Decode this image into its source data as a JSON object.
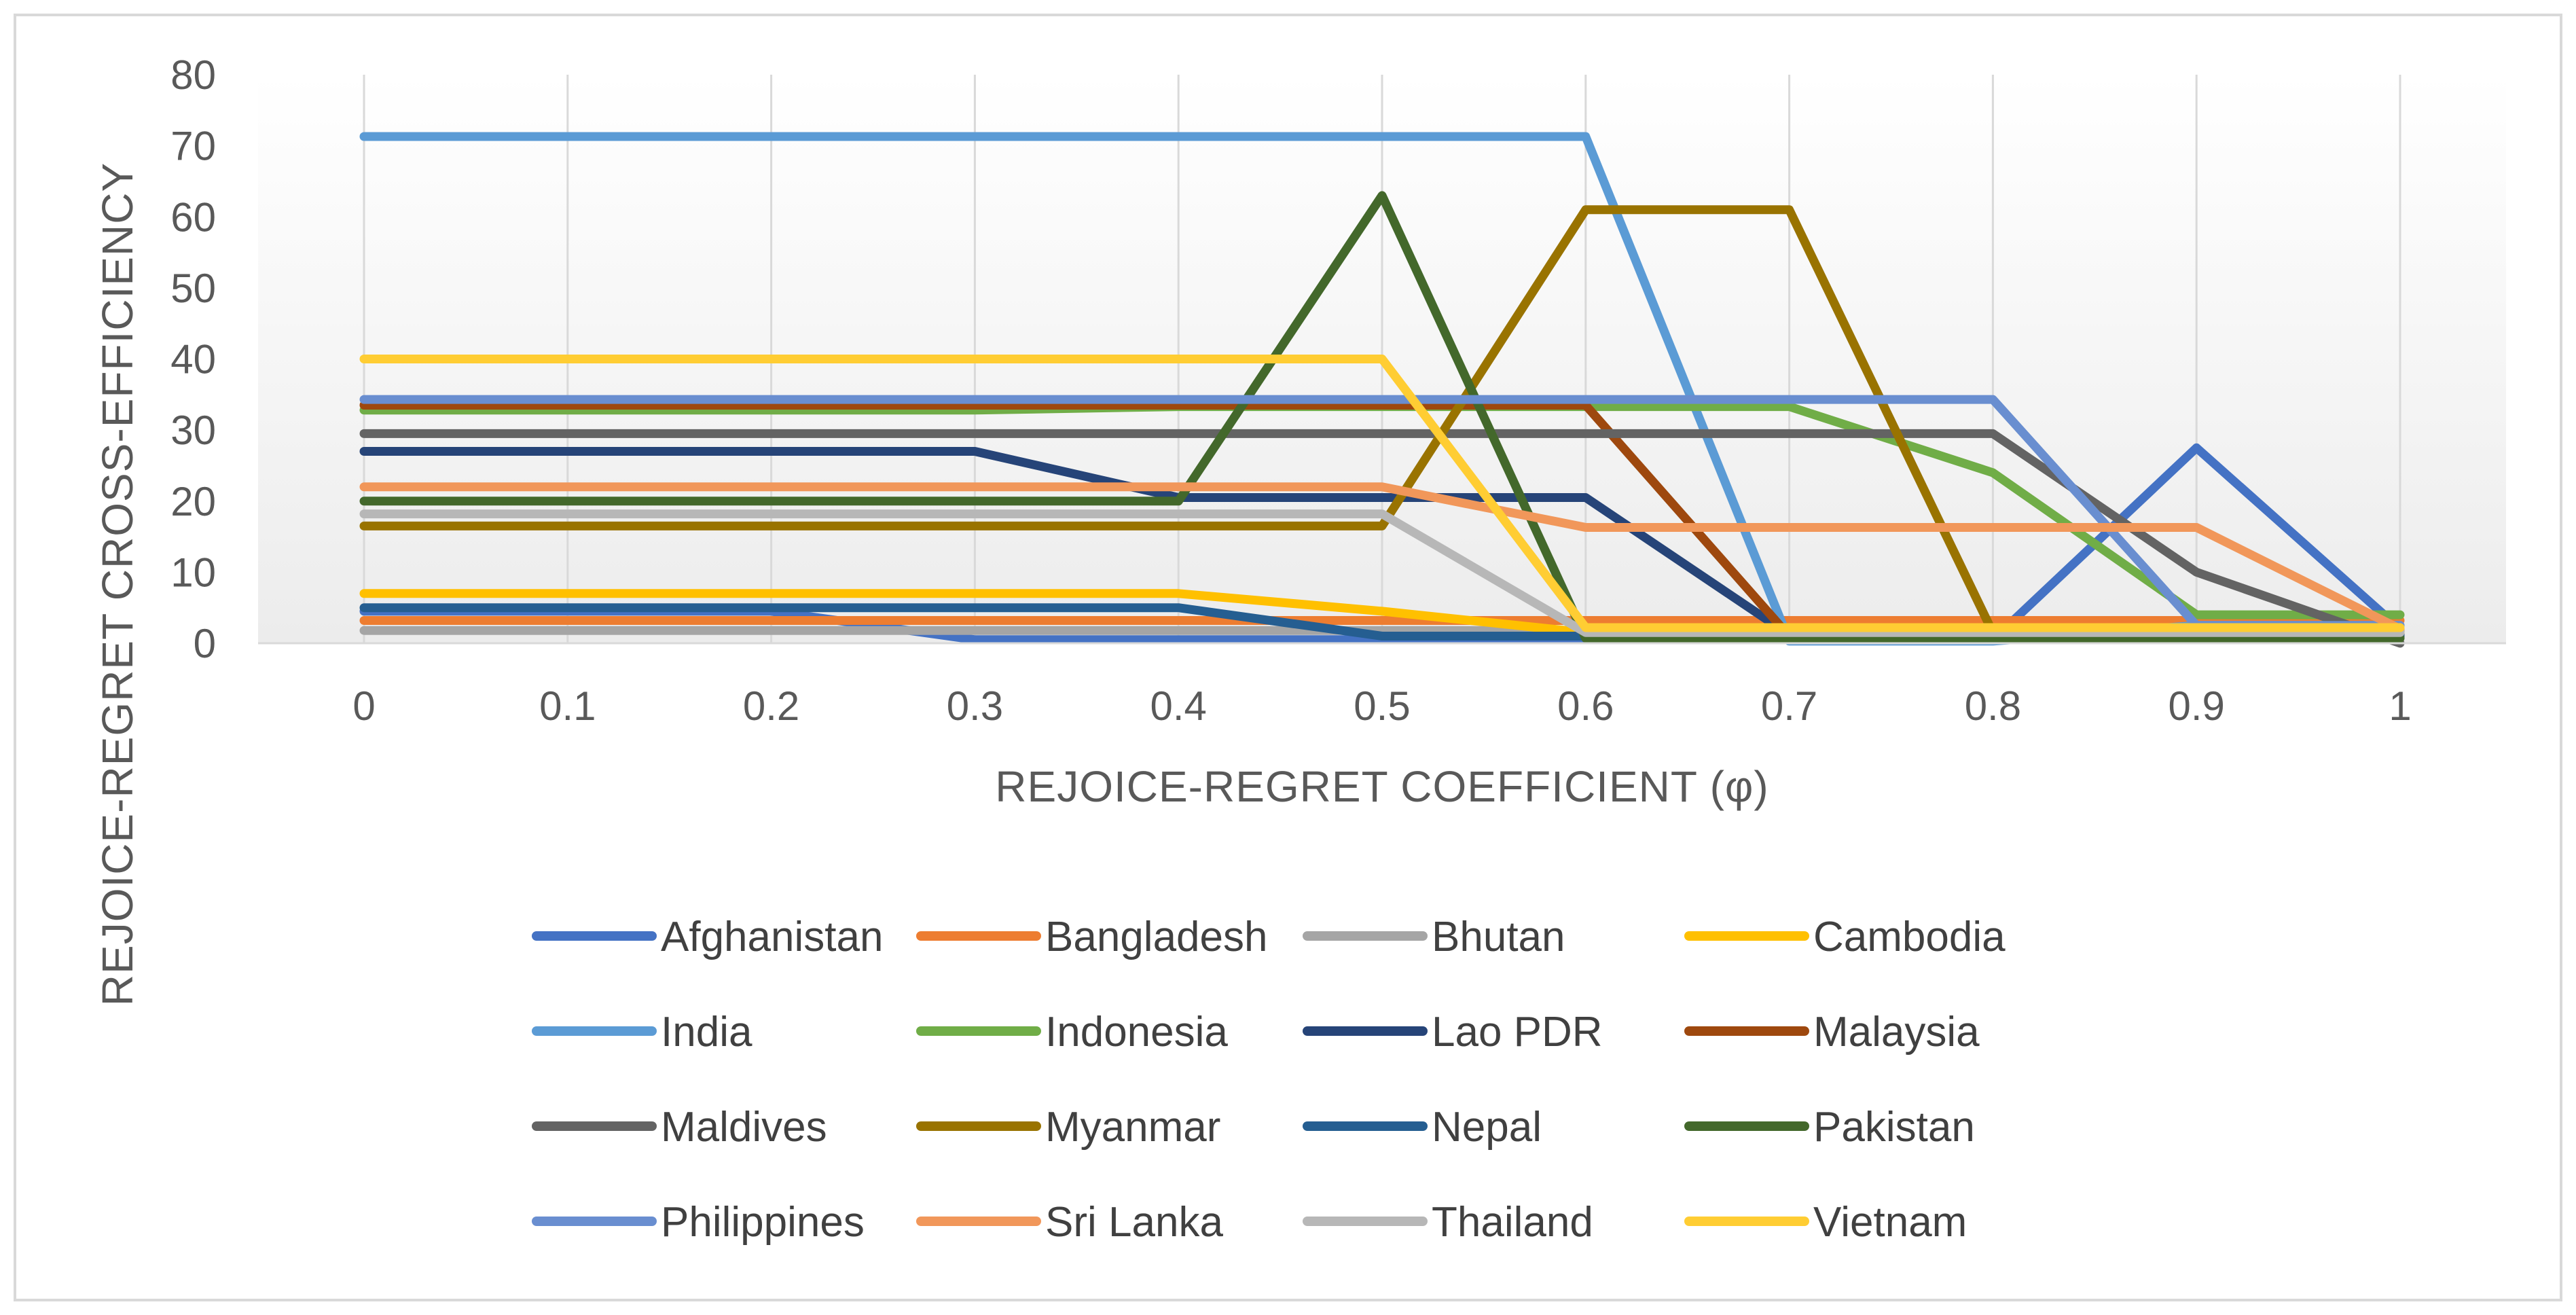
{
  "chart_data": {
    "type": "line",
    "title": "",
    "xlabel": "REJOICE-REGRET COEFFICIENT (φ)",
    "ylabel": "REJOICE-REGRET CROSS-EFFICIENCY",
    "x": [
      0,
      0.1,
      0.2,
      0.3,
      0.4,
      0.5,
      0.6,
      0.7,
      0.8,
      0.9,
      1
    ],
    "x_tick_labels": [
      "0",
      "0.1",
      "0.2",
      "0.3",
      "0.4",
      "0.5",
      "0.6",
      "0.7",
      "0.8",
      "0.9",
      "1"
    ],
    "ylim": [
      0,
      80
    ],
    "y_ticks": [
      0,
      10,
      20,
      30,
      40,
      50,
      60,
      70,
      80
    ],
    "grid": "vertical",
    "legend_position": "bottom",
    "series": [
      {
        "name": "Afghanistan",
        "color": "#4472C4",
        "values": [
          4.5,
          4.5,
          4.5,
          0.5,
          0.5,
          0.5,
          0.5,
          0.5,
          0.5,
          27.5,
          2
        ]
      },
      {
        "name": "Bangladesh",
        "color": "#ED7D31",
        "values": [
          3.2,
          3.2,
          3.2,
          3.2,
          3.2,
          3.2,
          3.2,
          3.2,
          3.2,
          3.2,
          3.2
        ]
      },
      {
        "name": "Bhutan",
        "color": "#A5A5A5",
        "values": [
          1.8,
          1.8,
          1.8,
          1.8,
          1.8,
          1.8,
          1.8,
          1.8,
          1.8,
          1.8,
          1.8
        ]
      },
      {
        "name": "Cambodia",
        "color": "#FFC000",
        "values": [
          7,
          7,
          7,
          7,
          7,
          4.5,
          1.5,
          1.5,
          1.5,
          1.5,
          1.5
        ]
      },
      {
        "name": "India",
        "color": "#5B9BD5",
        "values": [
          71.3,
          71.3,
          71.3,
          71.3,
          71.3,
          71.3,
          71.3,
          0.3,
          0.3,
          2.5,
          2.5
        ]
      },
      {
        "name": "Indonesia",
        "color": "#70AD47",
        "values": [
          32.8,
          32.8,
          32.8,
          32.8,
          33.3,
          33.3,
          33.3,
          33.3,
          24,
          4,
          4
        ]
      },
      {
        "name": "Lao PDR",
        "color": "#264478",
        "values": [
          27,
          27,
          27,
          27,
          20.5,
          20.5,
          20.5,
          1.2,
          1.2,
          1.2,
          1.2
        ]
      },
      {
        "name": "Malaysia",
        "color": "#9E480E",
        "values": [
          33.5,
          33.5,
          33.5,
          33.5,
          33.5,
          33.5,
          33.5,
          1,
          1,
          1,
          1
        ]
      },
      {
        "name": "Maldives",
        "color": "#636363",
        "values": [
          29.5,
          29.5,
          29.5,
          29.5,
          29.5,
          29.5,
          29.5,
          29.5,
          29.5,
          10,
          0
        ]
      },
      {
        "name": "Myanmar",
        "color": "#997300",
        "values": [
          16.5,
          16.5,
          16.5,
          16.5,
          16.5,
          16.5,
          61,
          61,
          1.5,
          1.5,
          1.5
        ]
      },
      {
        "name": "Nepal",
        "color": "#255E91",
        "values": [
          5,
          5,
          5,
          5,
          5,
          1,
          1,
          1,
          1,
          1,
          1
        ]
      },
      {
        "name": "Pakistan",
        "color": "#43682B",
        "values": [
          20,
          20,
          20,
          20,
          20,
          63,
          0.7,
          0.7,
          0.7,
          0.7,
          0.7
        ]
      },
      {
        "name": "Philippines",
        "color": "#698ED0",
        "values": [
          34.3,
          34.3,
          34.3,
          34.3,
          34.3,
          34.3,
          34.3,
          34.3,
          34.3,
          2.5,
          2.5
        ]
      },
      {
        "name": "Sri Lanka",
        "color": "#F1975A",
        "values": [
          22,
          22,
          22,
          22,
          22,
          22,
          16.3,
          16.3,
          16.3,
          16.3,
          2
        ]
      },
      {
        "name": "Thailand",
        "color": "#B7B7B7",
        "values": [
          18.2,
          18.2,
          18.2,
          18.2,
          18.2,
          18.2,
          1.5,
          1.5,
          1.5,
          1.5,
          1.5
        ]
      },
      {
        "name": "Vietnam",
        "color": "#FFCD33",
        "values": [
          40,
          40,
          40,
          40,
          40,
          40,
          2.2,
          2.2,
          2.2,
          2.2,
          2.2
        ]
      }
    ]
  }
}
